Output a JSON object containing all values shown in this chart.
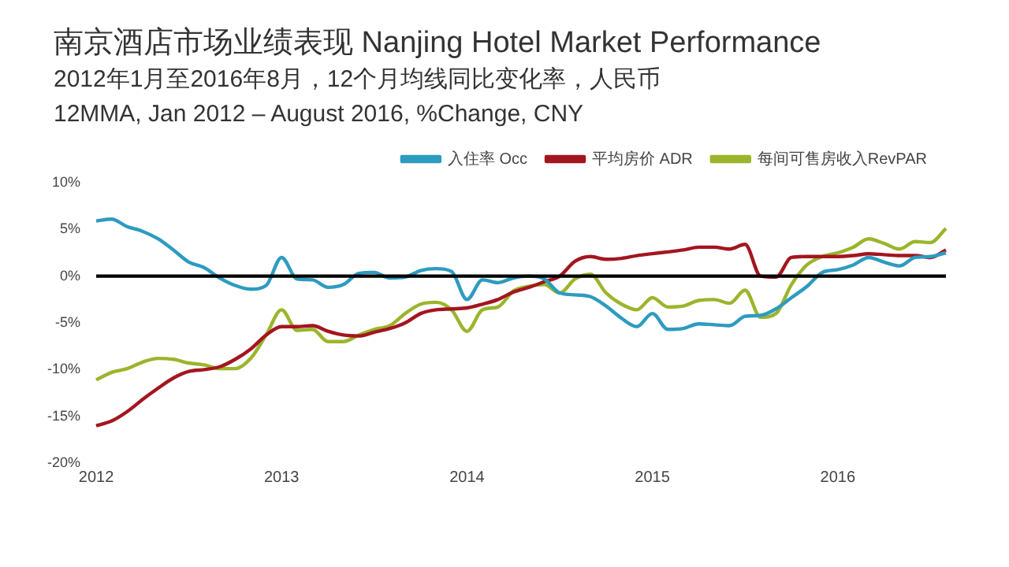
{
  "chart_data": {
    "type": "line",
    "title": "南京酒店市场业绩表现 Nanjing Hotel Market Performance",
    "subtitle": "2012年1月至2016年8月，12个月均线同比变化率，人民币\n12MMA, Jan 2012 – August 2016, %Change, CNY",
    "categories": [
      "2012",
      null,
      null,
      null,
      null,
      null,
      null,
      null,
      null,
      null,
      null,
      null,
      "2013",
      null,
      null,
      null,
      null,
      null,
      null,
      null,
      null,
      null,
      null,
      null,
      "2014",
      null,
      null,
      null,
      null,
      null,
      null,
      null,
      null,
      null,
      null,
      null,
      "2015",
      null,
      null,
      null,
      null,
      null,
      null,
      null,
      null,
      null,
      null,
      null,
      "2016",
      null,
      null,
      null,
      null,
      null,
      null,
      null
    ],
    "series": [
      {
        "name": "入住率 Occ",
        "color": "#2e9bc0",
        "values": [
          5.9,
          6.1,
          5.3,
          4.8,
          4.0,
          2.8,
          1.5,
          0.9,
          -0.2,
          -1.0,
          -1.4,
          -1.0,
          2.0,
          -0.3,
          -0.4,
          -1.2,
          -0.9,
          0.3,
          0.4,
          -0.2,
          -0.1,
          0.6,
          0.8,
          0.5,
          -2.5,
          -0.4,
          -0.7,
          -0.2,
          0.0,
          -0.3,
          -1.8,
          -2.0,
          -2.2,
          -3.2,
          -4.5,
          -5.4,
          -4.0,
          -5.7,
          -5.6,
          -5.1,
          -5.2,
          -5.3,
          -4.3,
          -4.2,
          -3.5,
          -2.3,
          -1.1,
          0.4,
          0.7,
          1.2,
          2.0,
          1.5,
          1.1,
          2.0,
          2.1,
          2.5
        ]
      },
      {
        "name": "平均房价 ADR",
        "color": "#a3161f",
        "values": [
          -16.0,
          -15.5,
          -14.5,
          -13.2,
          -12.0,
          -10.9,
          -10.2,
          -10.0,
          -9.7,
          -8.9,
          -7.8,
          -6.3,
          -5.4,
          -5.4,
          -5.3,
          -5.9,
          -6.3,
          -6.4,
          -6.0,
          -5.6,
          -5.0,
          -4.0,
          -3.6,
          -3.5,
          -3.4,
          -3.0,
          -2.5,
          -1.7,
          -1.2,
          -0.6,
          0.0,
          1.6,
          2.1,
          1.8,
          1.9,
          2.2,
          2.4,
          2.6,
          2.8,
          3.1,
          3.1,
          2.9,
          3.4,
          0.0,
          -0.1,
          2.0,
          2.1,
          2.1,
          2.1,
          2.2,
          2.4,
          2.3,
          2.2,
          2.2,
          2.0,
          2.8
        ]
      },
      {
        "name": "每间可售房收入RevPAR",
        "color": "#9bb52c",
        "values": [
          -11.1,
          -10.3,
          -9.9,
          -9.2,
          -8.8,
          -8.9,
          -9.3,
          -9.5,
          -9.9,
          -9.9,
          -8.8,
          -6.3,
          -3.6,
          -5.8,
          -5.7,
          -7.0,
          -7.0,
          -6.3,
          -5.7,
          -5.3,
          -4.0,
          -3.0,
          -2.8,
          -3.6,
          -5.9,
          -3.6,
          -3.3,
          -1.6,
          -1.1,
          -0.9,
          -1.8,
          -0.3,
          0.2,
          -1.8,
          -3.0,
          -3.6,
          -2.3,
          -3.3,
          -3.2,
          -2.6,
          -2.5,
          -2.9,
          -1.5,
          -4.4,
          -4.0,
          -0.9,
          1.2,
          2.1,
          2.5,
          3.1,
          4.0,
          3.5,
          2.9,
          3.7,
          3.6,
          5.1
        ]
      }
    ],
    "ylim": [
      -20,
      10
    ],
    "yticks": [
      {
        "value": 10,
        "label": "10%"
      },
      {
        "value": 5,
        "label": "5%"
      },
      {
        "value": 0,
        "label": "0%"
      },
      {
        "value": -5,
        "label": "-5%"
      },
      {
        "value": -10,
        "label": "-10%"
      },
      {
        "value": -15,
        "label": "-15%"
      },
      {
        "value": -20,
        "label": "-20%"
      }
    ],
    "ref_lines": [
      {
        "axis": "y",
        "value": 0,
        "color": "#000000"
      }
    ],
    "legend": "top",
    "grid": false,
    "marker": "none",
    "line_style": "solid"
  }
}
